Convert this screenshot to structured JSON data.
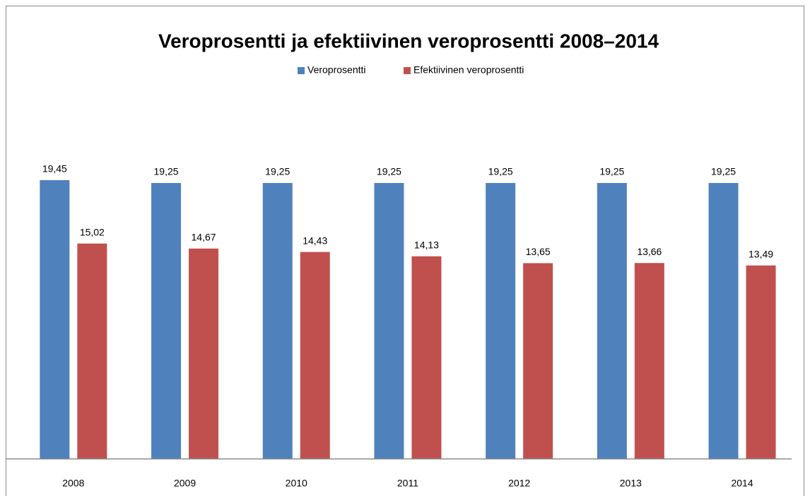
{
  "chart_data": {
    "type": "bar",
    "title": "Veroprosentti ja efektiivinen veroprosentti 2008–2014",
    "categories": [
      "2008",
      "2009",
      "2010",
      "2011",
      "2012",
      "2013",
      "2014"
    ],
    "series": [
      {
        "name": "Veroprosentti",
        "color": "#4f81bd",
        "values": [
          19.45,
          19.25,
          19.25,
          19.25,
          19.25,
          19.25,
          19.25
        ],
        "value_labels": [
          "19,45",
          "19,25",
          "19,25",
          "19,25",
          "19,25",
          "19,25",
          "19,25"
        ]
      },
      {
        "name": "Efektiivinen veroprosentti",
        "color": "#c0504d",
        "values": [
          15.02,
          14.67,
          14.43,
          14.13,
          13.65,
          13.66,
          13.49
        ],
        "value_labels": [
          "15,02",
          "14,67",
          "14,43",
          "14,13",
          "13,65",
          "13,66",
          "13,49"
        ]
      }
    ],
    "legend": "top"
  }
}
